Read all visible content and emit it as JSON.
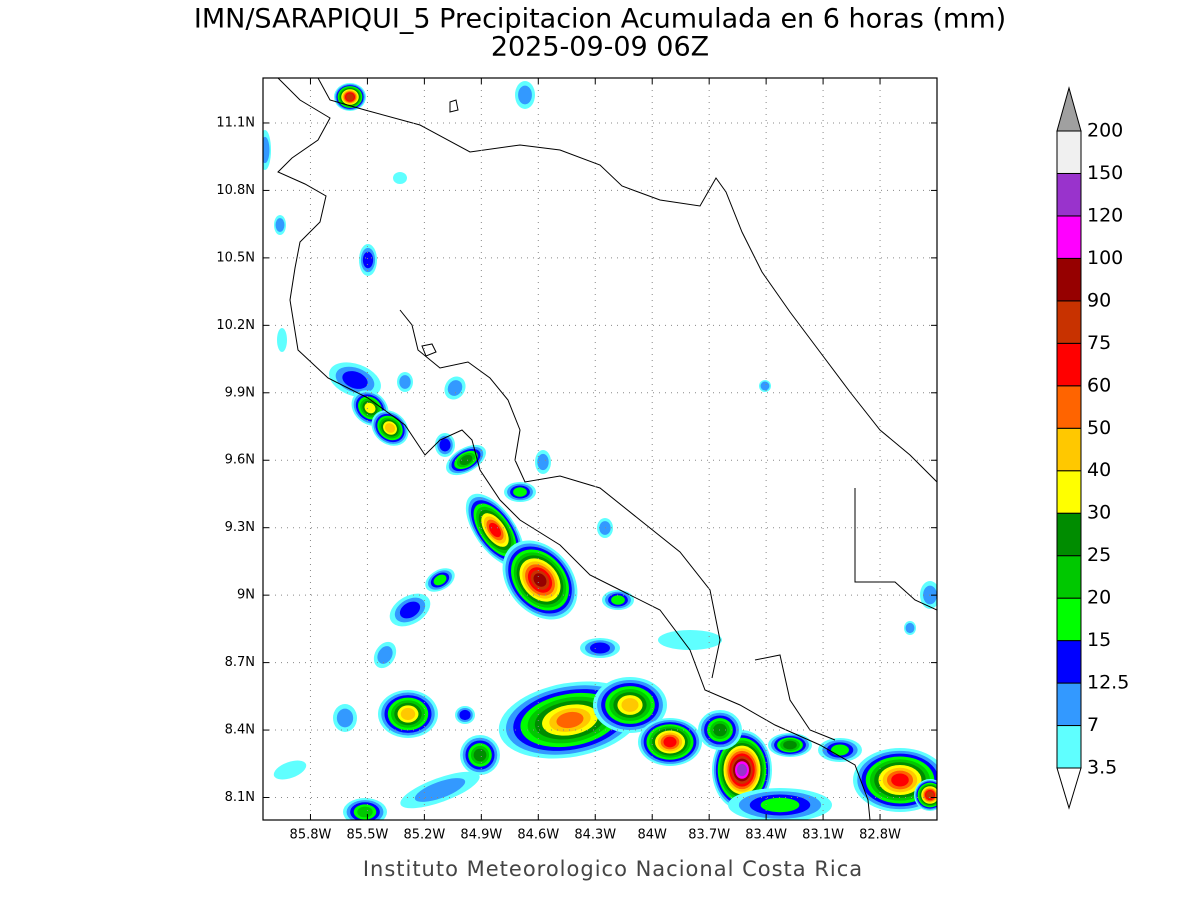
{
  "title": "IMN/SARAPIQUI_5 Precipitacion Acumulada en 6 horas (mm)",
  "subtitle": "2025-09-09 06Z",
  "footer": "Instituto Meteorologico Nacional Costa Rica",
  "map": {
    "lon_range": [
      -86.05,
      -82.5
    ],
    "lat_range": [
      8.0,
      11.3
    ],
    "grid": true,
    "lon_ticks": [
      {
        "value": -85.8,
        "label": "85.8W"
      },
      {
        "value": -85.5,
        "label": "85.5W"
      },
      {
        "value": -85.2,
        "label": "85.2W"
      },
      {
        "value": -84.9,
        "label": "84.9W"
      },
      {
        "value": -84.6,
        "label": "84.6W"
      },
      {
        "value": -84.3,
        "label": "84.3W"
      },
      {
        "value": -84.0,
        "label": "84W"
      },
      {
        "value": -83.7,
        "label": "83.7W"
      },
      {
        "value": -83.4,
        "label": "83.4W"
      },
      {
        "value": -83.1,
        "label": "83.1W"
      },
      {
        "value": -82.8,
        "label": "82.8W"
      }
    ],
    "lat_ticks": [
      {
        "value": 11.1,
        "label": "11.1N"
      },
      {
        "value": 10.8,
        "label": "10.8N"
      },
      {
        "value": 10.5,
        "label": "10.5N"
      },
      {
        "value": 10.2,
        "label": "10.2N"
      },
      {
        "value": 9.9,
        "label": "9.9N"
      },
      {
        "value": 9.6,
        "label": "9.6N"
      },
      {
        "value": 9.3,
        "label": "9.3N"
      },
      {
        "value": 9.0,
        "label": "9N"
      },
      {
        "value": 8.7,
        "label": "8.7N"
      },
      {
        "value": 8.4,
        "label": "8.4N"
      },
      {
        "value": 8.1,
        "label": "8.1N"
      }
    ]
  },
  "colorbar": {
    "levels": [
      3.5,
      7,
      12.5,
      15,
      20,
      25,
      30,
      40,
      50,
      60,
      75,
      90,
      100,
      120,
      150,
      200
    ],
    "colors": [
      "#ffffff",
      "#5fffff",
      "#3399ff",
      "#0000ff",
      "#00ff00",
      "#00c800",
      "#008c00",
      "#ffff00",
      "#ffc800",
      "#ff6400",
      "#ff0000",
      "#c83200",
      "#960000",
      "#ff00ff",
      "#9933cc",
      "#f0f0f0",
      "#a0a0a0"
    ]
  }
}
